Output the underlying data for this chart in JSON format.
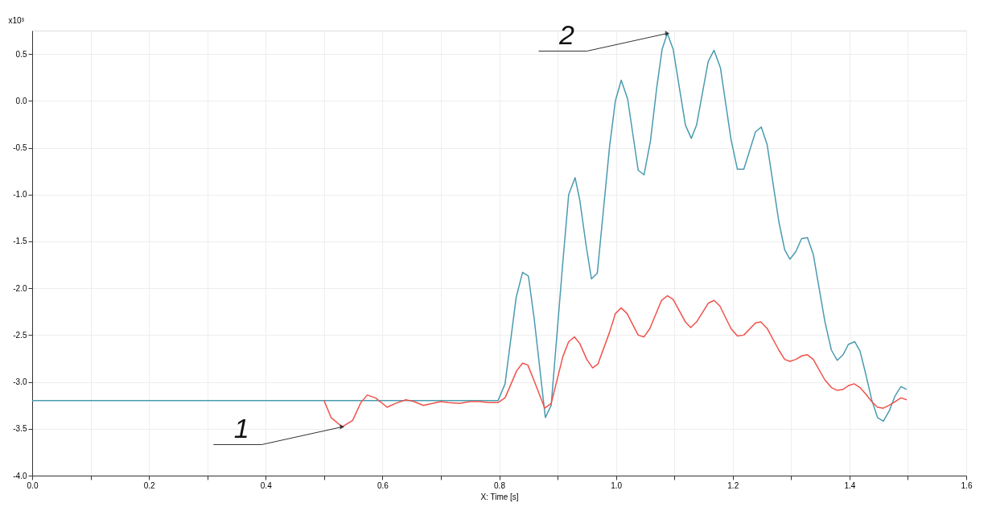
{
  "chart_data": {
    "type": "line",
    "xlabel": "X: Time [s]",
    "ylabel": "x10³",
    "xlim": [
      0,
      1.6
    ],
    "ylim": [
      -4.0,
      0.75
    ],
    "xticks": [
      {
        "value": 0,
        "label": "0.0"
      },
      {
        "value": 0.1,
        "label": null
      },
      {
        "value": 0.2,
        "label": "0.2"
      },
      {
        "value": 0.3,
        "label": null
      },
      {
        "value": 0.4,
        "label": "0.4"
      },
      {
        "value": 0.5,
        "label": null
      },
      {
        "value": 0.6,
        "label": "0.6"
      },
      {
        "value": 0.7,
        "label": null
      },
      {
        "value": 0.8,
        "label": "0.8"
      },
      {
        "value": 0.9,
        "label": null
      },
      {
        "value": 1.0,
        "label": "1.0"
      },
      {
        "value": 1.1,
        "label": null
      },
      {
        "value": 1.2,
        "label": "1.2"
      },
      {
        "value": 1.3,
        "label": null
      },
      {
        "value": 1.4,
        "label": "1.4"
      },
      {
        "value": 1.5,
        "label": null
      },
      {
        "value": 1.6,
        "label": "1.6"
      }
    ],
    "yticks": [
      {
        "value": -4.0,
        "label": "-4.0"
      },
      {
        "value": -3.5,
        "label": "-3.5"
      },
      {
        "value": -3.0,
        "label": "-3.0"
      },
      {
        "value": -2.5,
        "label": "-2.5"
      },
      {
        "value": -2.0,
        "label": "-2.0"
      },
      {
        "value": -1.5,
        "label": "-1.5"
      },
      {
        "value": -1.0,
        "label": "-1.0"
      },
      {
        "value": -0.5,
        "label": "-0.5"
      },
      {
        "value": 0,
        "label": "0.0"
      },
      {
        "value": 0.5,
        "label": "0.5"
      }
    ],
    "grid": true,
    "legend": false,
    "line_style": "solid",
    "annotations": [
      {
        "text": "1",
        "x": 0.531,
        "y": -3.48
      },
      {
        "text": "2",
        "x": 1.088,
        "y": 0.72
      }
    ],
    "series": [
      {
        "color": "#4a9bb0",
        "x": [
          0,
          0.798,
          0.81,
          0.829,
          0.84,
          0.85,
          0.86,
          0.879,
          0.889,
          0.909,
          0.919,
          0.93,
          0.938,
          0.949,
          0.958,
          0.968,
          0.989,
          0.999,
          1.009,
          1.02,
          1.038,
          1.048,
          1.059,
          1.07,
          1.079,
          1.088,
          1.098,
          1.119,
          1.129,
          1.138,
          1.158,
          1.168,
          1.179,
          1.197,
          1.208,
          1.219,
          1.239,
          1.249,
          1.259,
          1.279,
          1.289,
          1.298,
          1.308,
          1.318,
          1.328,
          1.338,
          1.358,
          1.369,
          1.379,
          1.389,
          1.398,
          1.409,
          1.418,
          1.428,
          1.438,
          1.448,
          1.458,
          1.468,
          1.478,
          1.488,
          1.498
        ],
        "values": [
          -3.2,
          -3.2,
          -3.02,
          -2.1,
          -1.83,
          -1.87,
          -2.33,
          -3.38,
          -3.25,
          -1.72,
          -1.0,
          -0.82,
          -1.06,
          -1.55,
          -1.9,
          -1.84,
          -0.49,
          0.0,
          0.22,
          0.02,
          -0.74,
          -0.79,
          -0.43,
          0.15,
          0.55,
          0.72,
          0.55,
          -0.26,
          -0.4,
          -0.26,
          0.42,
          0.54,
          0.35,
          -0.41,
          -0.73,
          -0.73,
          -0.33,
          -0.28,
          -0.47,
          -1.29,
          -1.59,
          -1.69,
          -1.61,
          -1.47,
          -1.46,
          -1.64,
          -2.36,
          -2.66,
          -2.77,
          -2.71,
          -2.6,
          -2.57,
          -2.67,
          -2.92,
          -3.19,
          -3.38,
          -3.42,
          -3.31,
          -3.15,
          -3.05,
          -3.08
        ]
      },
      {
        "color": "#f0524a",
        "x": [
          0.5,
          0.512,
          0.531,
          0.549,
          0.563,
          0.574,
          0.588,
          0.608,
          0.622,
          0.64,
          0.654,
          0.67,
          0.686,
          0.7,
          0.713,
          0.732,
          0.75,
          0.766,
          0.782,
          0.798,
          0.81,
          0.83,
          0.84,
          0.849,
          0.86,
          0.878,
          0.889,
          0.909,
          0.919,
          0.929,
          0.938,
          0.95,
          0.96,
          0.969,
          0.989,
          0.999,
          1.009,
          1.019,
          1.038,
          1.048,
          1.058,
          1.078,
          1.088,
          1.098,
          1.119,
          1.128,
          1.138,
          1.158,
          1.168,
          1.178,
          1.197,
          1.208,
          1.219,
          1.239,
          1.248,
          1.259,
          1.279,
          1.289,
          1.298,
          1.308,
          1.319,
          1.328,
          1.338,
          1.358,
          1.369,
          1.379,
          1.389,
          1.398,
          1.408,
          1.418,
          1.428,
          1.438,
          1.448,
          1.458,
          1.468,
          1.478,
          1.488,
          1.498
        ],
        "values": [
          -3.2,
          -3.38,
          -3.48,
          -3.41,
          -3.22,
          -3.14,
          -3.17,
          -3.27,
          -3.23,
          -3.19,
          -3.21,
          -3.25,
          -3.23,
          -3.21,
          -3.22,
          -3.23,
          -3.21,
          -3.21,
          -3.22,
          -3.22,
          -3.17,
          -2.88,
          -2.8,
          -2.82,
          -2.99,
          -3.28,
          -3.23,
          -2.73,
          -2.57,
          -2.52,
          -2.59,
          -2.76,
          -2.85,
          -2.81,
          -2.47,
          -2.27,
          -2.21,
          -2.27,
          -2.5,
          -2.52,
          -2.43,
          -2.13,
          -2.08,
          -2.12,
          -2.36,
          -2.42,
          -2.36,
          -2.16,
          -2.13,
          -2.19,
          -2.43,
          -2.51,
          -2.5,
          -2.37,
          -2.36,
          -2.43,
          -2.66,
          -2.76,
          -2.78,
          -2.76,
          -2.72,
          -2.71,
          -2.76,
          -2.98,
          -3.06,
          -3.09,
          -3.08,
          -3.04,
          -3.02,
          -3.06,
          -3.13,
          -3.21,
          -3.27,
          -3.28,
          -3.25,
          -3.21,
          -3.17,
          -3.19
        ]
      }
    ]
  }
}
